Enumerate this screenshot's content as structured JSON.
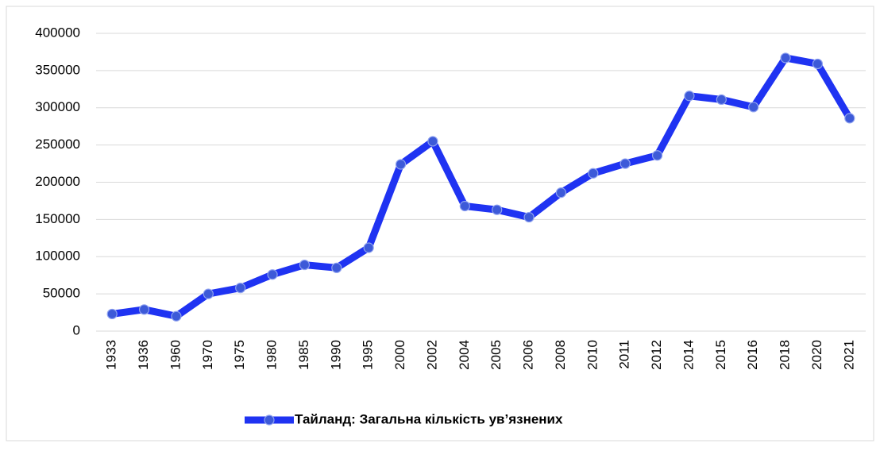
{
  "chart_data": {
    "type": "line",
    "categories": [
      "1933",
      "1936",
      "1960",
      "1970",
      "1975",
      "1980",
      "1985",
      "1990",
      "1995",
      "2000",
      "2002",
      "2004",
      "2005",
      "2006",
      "2008",
      "2010",
      "2011",
      "2012",
      "2014",
      "2015",
      "2016",
      "2018",
      "2020",
      "2021"
    ],
    "series": [
      {
        "name": "Тайланд: Загальна кількість ув’язнених",
        "color": "#1f33f2",
        "values": [
          23000,
          29000,
          20000,
          50000,
          58000,
          76000,
          89000,
          85000,
          112000,
          224000,
          255000,
          168000,
          163000,
          153000,
          186000,
          212000,
          225000,
          236000,
          316000,
          311000,
          301000,
          367000,
          359000,
          286000
        ]
      }
    ],
    "ylim": [
      0,
      400000
    ],
    "yticks": [
      0,
      50000,
      100000,
      150000,
      200000,
      250000,
      300000,
      350000,
      400000
    ],
    "grid": true,
    "legend": "bottom"
  }
}
